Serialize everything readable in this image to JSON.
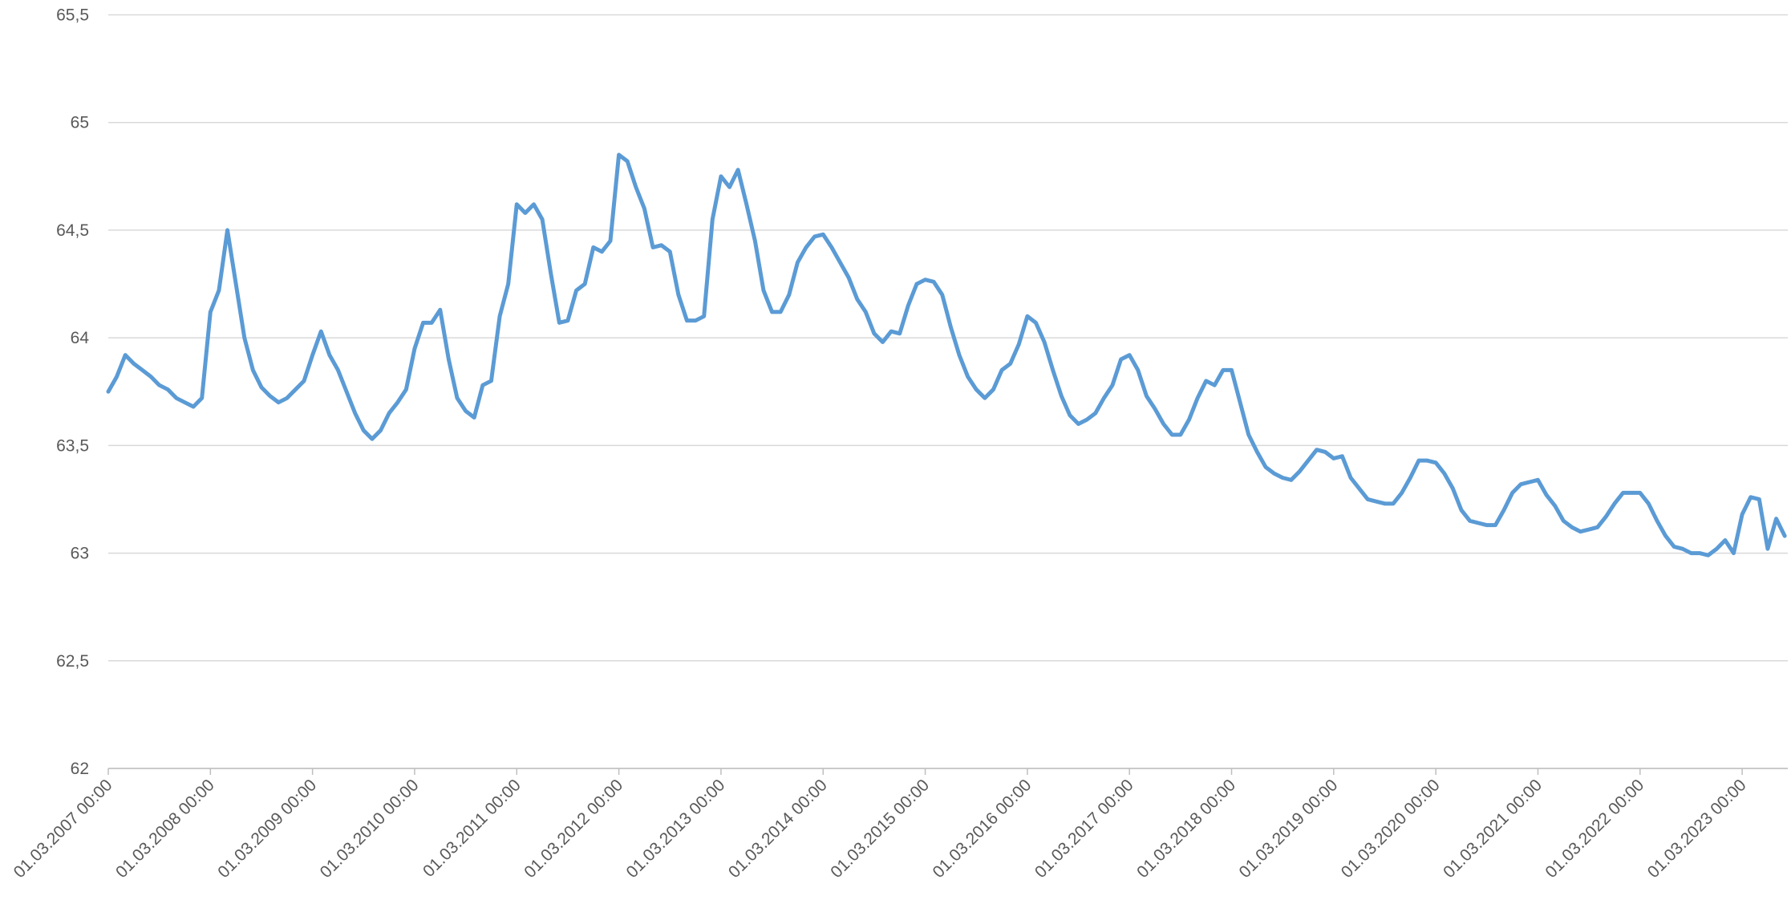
{
  "chart_data": {
    "type": "line",
    "categories": [
      "01.03.2007 00:00",
      null,
      null,
      null,
      null,
      null,
      null,
      null,
      null,
      null,
      null,
      null,
      "01.03.2008 00:00",
      null,
      null,
      null,
      null,
      null,
      null,
      null,
      null,
      null,
      null,
      null,
      "01.03.2009 00:00",
      null,
      null,
      null,
      null,
      null,
      null,
      null,
      null,
      null,
      null,
      null,
      "01.03.2010 00:00",
      null,
      null,
      null,
      null,
      null,
      null,
      null,
      null,
      null,
      null,
      null,
      "01.03.2011 00:00",
      null,
      null,
      null,
      null,
      null,
      null,
      null,
      null,
      null,
      null,
      null,
      "01.03.2012 00:00",
      null,
      null,
      null,
      null,
      null,
      null,
      null,
      null,
      null,
      null,
      null,
      "01.03.2013 00:00",
      null,
      null,
      null,
      null,
      null,
      null,
      null,
      null,
      null,
      null,
      null,
      "01.03.2014 00:00",
      null,
      null,
      null,
      null,
      null,
      null,
      null,
      null,
      null,
      null,
      null,
      "01.03.2015 00:00",
      null,
      null,
      null,
      null,
      null,
      null,
      null,
      null,
      null,
      null,
      null,
      "01.03.2016 00:00",
      null,
      null,
      null,
      null,
      null,
      null,
      null,
      null,
      null,
      null,
      null,
      "01.03.2017 00:00",
      null,
      null,
      null,
      null,
      null,
      null,
      null,
      null,
      null,
      null,
      null,
      "01.03.2018 00:00",
      null,
      null,
      null,
      null,
      null,
      null,
      null,
      null,
      null,
      null,
      null,
      "01.03.2019 00:00",
      null,
      null,
      null,
      null,
      null,
      null,
      null,
      null,
      null,
      null,
      null,
      "01.03.2020 00:00",
      null,
      null,
      null,
      null,
      null,
      null,
      null,
      null,
      null,
      null,
      null,
      "01.03.2021 00:00",
      null,
      null,
      null,
      null,
      null,
      null,
      null,
      null,
      null,
      null,
      null,
      "01.03.2022 00:00",
      null,
      null,
      null,
      null,
      null,
      null,
      null,
      null,
      null,
      null,
      null,
      "01.03.2023 00:00",
      null,
      null,
      null,
      null,
      null
    ],
    "values": [
      63.75,
      63.82,
      63.92,
      63.88,
      63.85,
      63.82,
      63.78,
      63.76,
      63.72,
      63.7,
      63.68,
      63.72,
      64.12,
      64.22,
      64.5,
      64.25,
      64.0,
      63.85,
      63.77,
      63.73,
      63.7,
      63.72,
      63.76,
      63.8,
      63.92,
      64.03,
      63.92,
      63.85,
      63.75,
      63.65,
      63.57,
      63.53,
      63.57,
      63.65,
      63.7,
      63.76,
      63.95,
      64.07,
      64.07,
      64.13,
      63.9,
      63.72,
      63.66,
      63.63,
      63.78,
      63.8,
      64.1,
      64.25,
      64.62,
      64.58,
      64.62,
      64.55,
      64.3,
      64.07,
      64.08,
      64.22,
      64.25,
      64.42,
      64.4,
      64.45,
      64.85,
      64.82,
      64.7,
      64.6,
      64.42,
      64.43,
      64.4,
      64.2,
      64.08,
      64.08,
      64.1,
      64.55,
      64.75,
      64.7,
      64.78,
      64.62,
      64.45,
      64.22,
      64.12,
      64.12,
      64.2,
      64.35,
      64.42,
      64.47,
      64.48,
      64.42,
      64.35,
      64.28,
      64.18,
      64.12,
      64.02,
      63.98,
      64.03,
      64.02,
      64.15,
      64.25,
      64.27,
      64.26,
      64.2,
      64.05,
      63.92,
      63.82,
      63.76,
      63.72,
      63.76,
      63.85,
      63.88,
      63.97,
      64.1,
      64.07,
      63.98,
      63.85,
      63.73,
      63.64,
      63.6,
      63.62,
      63.65,
      63.72,
      63.78,
      63.9,
      63.92,
      63.85,
      63.73,
      63.67,
      63.6,
      63.55,
      63.55,
      63.62,
      63.72,
      63.8,
      63.78,
      63.85,
      63.85,
      63.7,
      63.55,
      63.47,
      63.4,
      63.37,
      63.35,
      63.34,
      63.38,
      63.43,
      63.48,
      63.47,
      63.44,
      63.45,
      63.35,
      63.3,
      63.25,
      63.24,
      63.23,
      63.23,
      63.28,
      63.35,
      63.43,
      63.43,
      63.42,
      63.37,
      63.3,
      63.2,
      63.15,
      63.14,
      63.13,
      63.13,
      63.2,
      63.28,
      63.32,
      63.33,
      63.34,
      63.27,
      63.22,
      63.15,
      63.12,
      63.1,
      63.11,
      63.12,
      63.17,
      63.23,
      63.28,
      63.28,
      63.28,
      63.23,
      63.15,
      63.08,
      63.03,
      63.02,
      63.0,
      63.0,
      62.99,
      63.02,
      63.06,
      63.0,
      63.18,
      63.26,
      63.25,
      63.02,
      63.16,
      63.08
    ],
    "color": "#5b9bd5",
    "ylim": [
      62,
      65.5
    ],
    "yticks": [
      62,
      {
        "value": 62.5,
        "label": "62,5"
      },
      63,
      {
        "value": 63.5,
        "label": "63,5"
      },
      64,
      {
        "value": 64.5,
        "label": "64,5"
      },
      65,
      {
        "value": 65.5,
        "label": "65,5"
      }
    ],
    "grid": true
  }
}
